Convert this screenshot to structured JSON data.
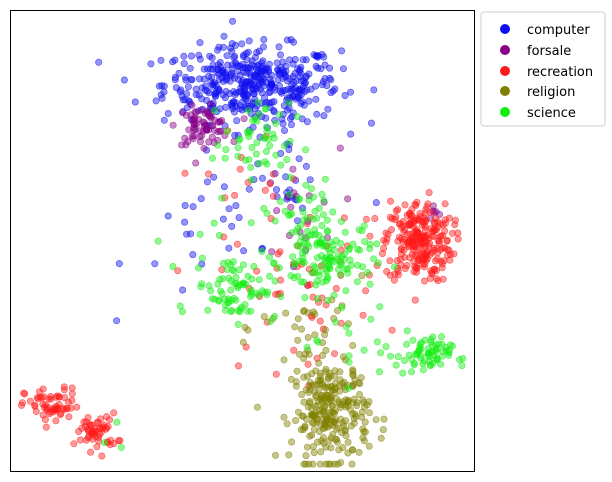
{
  "chart_data": {
    "type": "scatter",
    "title": "",
    "xlabel": "",
    "ylabel": "",
    "xlim": [
      0,
      100
    ],
    "ylim": [
      0,
      100
    ],
    "xticks": false,
    "yticks": false,
    "grid": false,
    "legend_placement": "outside-top-right",
    "marker_alpha": 0.45,
    "series": [
      {
        "name": "computer",
        "color": "#1010f0",
        "clusters": [
          {
            "cx": 52,
            "cy": 84,
            "sx": 9.5,
            "sy": 4.2,
            "n": 430
          },
          {
            "cx": 50,
            "cy": 53,
            "sx": 12,
            "sy": 8,
            "n": 35
          },
          {
            "cx": 60,
            "cy": 68,
            "sx": 3,
            "sy": 6,
            "n": 25
          }
        ]
      },
      {
        "name": "forsale",
        "color": "#880088",
        "clusters": [
          {
            "cx": 41.5,
            "cy": 75,
            "sx": 2.8,
            "sy": 2.0,
            "n": 70
          },
          {
            "cx": 61,
            "cy": 56,
            "sx": 5,
            "sy": 7,
            "n": 18
          },
          {
            "cx": 91,
            "cy": 56,
            "sx": 1.2,
            "sy": 1,
            "n": 6
          }
        ]
      },
      {
        "name": "recreation",
        "color": "#ff1a1a",
        "clusters": [
          {
            "cx": 88,
            "cy": 50,
            "sx": 3.6,
            "sy": 4.5,
            "n": 240
          },
          {
            "cx": 9,
            "cy": 14,
            "sx": 3,
            "sy": 2,
            "n": 60
          },
          {
            "cx": 18.5,
            "cy": 8.5,
            "sx": 2.2,
            "sy": 2,
            "n": 55
          },
          {
            "cx": 63,
            "cy": 40,
            "sx": 9,
            "sy": 9,
            "n": 55
          },
          {
            "cx": 53,
            "cy": 65,
            "sx": 9,
            "sy": 5,
            "n": 15
          }
        ]
      },
      {
        "name": "religion",
        "color": "#808000",
        "clusters": [
          {
            "cx": 69,
            "cy": 13,
            "sx": 4.2,
            "sy": 5.5,
            "n": 260
          },
          {
            "cx": 66,
            "cy": 31,
            "sx": 6,
            "sy": 5,
            "n": 30
          }
        ]
      },
      {
        "name": "science",
        "color": "#11ee11",
        "clusters": [
          {
            "cx": 68,
            "cy": 46,
            "sx": 5,
            "sy": 4,
            "n": 110
          },
          {
            "cx": 48.5,
            "cy": 40,
            "sx": 4.5,
            "sy": 3.5,
            "n": 80
          },
          {
            "cx": 89,
            "cy": 25,
            "sx": 3,
            "sy": 2,
            "n": 65
          },
          {
            "cx": 53,
            "cy": 72,
            "sx": 3.5,
            "sy": 4,
            "n": 40
          },
          {
            "cx": 64,
            "cy": 55,
            "sx": 5,
            "sy": 6,
            "n": 35
          },
          {
            "cx": 55,
            "cy": 62,
            "sx": 7,
            "sy": 8,
            "n": 25
          },
          {
            "cx": 75,
            "cy": 30,
            "sx": 6,
            "sy": 5,
            "n": 20
          },
          {
            "cx": 22,
            "cy": 8,
            "sx": 3,
            "sy": 5,
            "n": 3
          }
        ]
      }
    ]
  }
}
